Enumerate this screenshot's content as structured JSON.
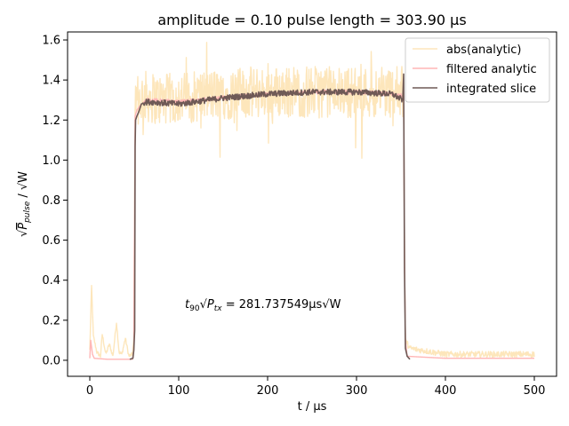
{
  "chart_data": {
    "type": "line",
    "title": "amplitude = 0.10 pulse length = 303.90 μs",
    "xlabel": "t / μs",
    "ylabel_parts": {
      "sqrt": "√",
      "P": "P",
      "sub": "pulse",
      "rest": " / √W"
    },
    "xlim": [
      -25,
      525
    ],
    "ylim": [
      -0.08,
      1.64
    ],
    "xticks": [
      0,
      100,
      200,
      300,
      400,
      500
    ],
    "yticks": [
      "0.0",
      "0.2",
      "0.4",
      "0.6",
      "0.8",
      "1.0",
      "1.2",
      "1.4",
      "1.6"
    ],
    "grid": false,
    "legend_position": "top-right",
    "series": [
      {
        "name": "abs(analytic)",
        "color": "#fde6bb",
        "style": "noisy",
        "points": [
          [
            0,
            0.05
          ],
          [
            2,
            0.37
          ],
          [
            4,
            0.12
          ],
          [
            8,
            0.04
          ],
          [
            12,
            0.02
          ],
          [
            14,
            0.13
          ],
          [
            18,
            0.03
          ],
          [
            22,
            0.08
          ],
          [
            26,
            0.02
          ],
          [
            30,
            0.19
          ],
          [
            33,
            0.04
          ],
          [
            36,
            0.03
          ],
          [
            40,
            0.11
          ],
          [
            44,
            0.02
          ],
          [
            48,
            0.03
          ],
          [
            49.5,
            0.1
          ],
          [
            51,
            1.25
          ],
          [
            55,
            1.3
          ],
          [
            60,
            1.32
          ],
          [
            80,
            1.3
          ],
          [
            100,
            1.31
          ],
          [
            150,
            1.33
          ],
          [
            200,
            1.34
          ],
          [
            250,
            1.34
          ],
          [
            300,
            1.34
          ],
          [
            350,
            1.34
          ],
          [
            353,
            1.34
          ],
          [
            354,
            0.5
          ],
          [
            355,
            0.1
          ],
          [
            360,
            0.06
          ],
          [
            400,
            0.03
          ],
          [
            450,
            0.03
          ],
          [
            500,
            0.03
          ]
        ]
      },
      {
        "name": "filtered analytic",
        "color": "#ffb6b6",
        "style": "smooth",
        "points": [
          [
            0,
            0.01
          ],
          [
            1,
            0.1
          ],
          [
            3,
            0.03
          ],
          [
            5,
            0.01
          ],
          [
            20,
            0.005
          ],
          [
            48,
            0.005
          ],
          [
            49.5,
            0.05
          ],
          [
            51,
            1.22
          ],
          [
            53,
            1.25
          ],
          [
            58,
            1.28
          ],
          [
            65,
            1.3
          ],
          [
            100,
            1.29
          ],
          [
            150,
            1.31
          ],
          [
            200,
            1.33
          ],
          [
            250,
            1.34
          ],
          [
            300,
            1.34
          ],
          [
            340,
            1.33
          ],
          [
            353,
            1.32
          ],
          [
            354,
            0.5
          ],
          [
            355,
            0.1
          ],
          [
            357,
            0.02
          ],
          [
            400,
            0.01
          ],
          [
            500,
            0.01
          ]
        ]
      },
      {
        "name": "integrated slice",
        "color": "#6f5a56",
        "style": "slice",
        "points": [
          [
            45,
            0.005
          ],
          [
            48.5,
            0.01
          ],
          [
            49.5,
            0.05
          ],
          [
            50.5,
            0.15
          ],
          [
            51,
            1.07
          ],
          [
            51.5,
            1.2
          ],
          [
            53,
            1.22
          ],
          [
            55,
            1.24
          ],
          [
            58,
            1.28
          ],
          [
            62,
            1.29
          ],
          [
            70,
            1.29
          ],
          [
            100,
            1.28
          ],
          [
            150,
            1.31
          ],
          [
            200,
            1.33
          ],
          [
            250,
            1.34
          ],
          [
            300,
            1.34
          ],
          [
            340,
            1.33
          ],
          [
            352,
            1.3
          ],
          [
            353,
            1.43
          ],
          [
            354,
            0.45
          ],
          [
            355,
            0.06
          ],
          [
            357,
            0.02
          ],
          [
            360,
            0.005
          ]
        ]
      }
    ],
    "annotation": {
      "prefix": "t",
      "sub90": "90",
      "sqrt": "√",
      "P": "P",
      "subtx": "tx",
      "suffix": " = 281.737549μs",
      "sqrtW": "√W"
    }
  }
}
